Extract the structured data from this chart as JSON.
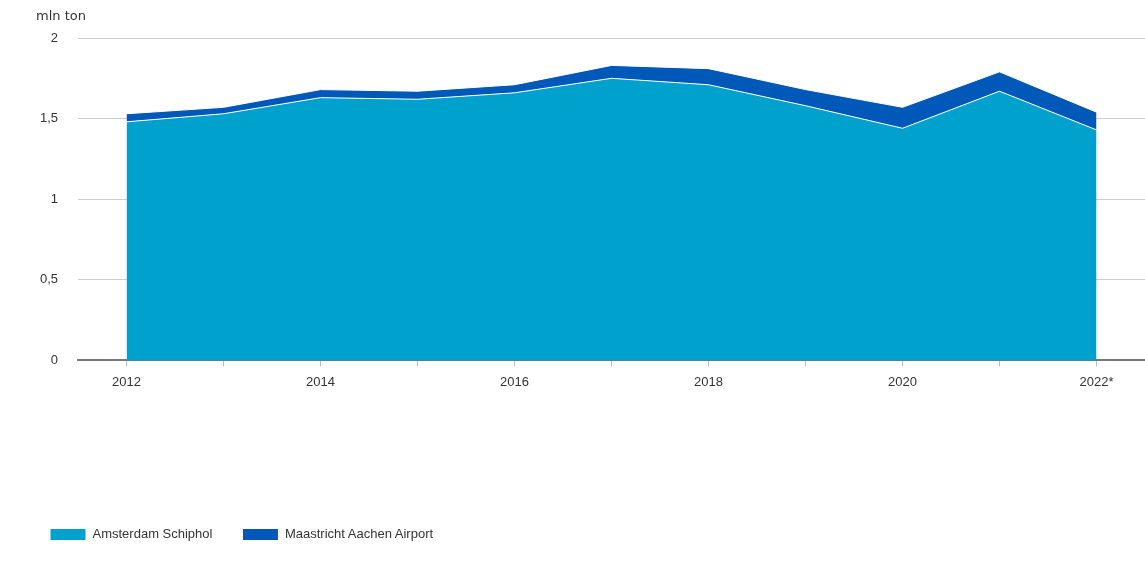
{
  "chart_data": {
    "type": "area",
    "stacked": true,
    "ylabel": "mln ton",
    "categories": [
      "2012",
      null,
      "2014",
      null,
      "2016",
      null,
      "2018",
      null,
      "2020",
      null,
      "2022*"
    ],
    "series": [
      {
        "name": "Amsterdam Schiphol",
        "color": "#00a1cd",
        "values": [
          1.48,
          1.53,
          1.63,
          1.62,
          1.66,
          1.75,
          1.71,
          1.58,
          1.44,
          1.67,
          1.43
        ]
      },
      {
        "name": "Maastricht Aachen Airport",
        "color": "#0058b8",
        "values": [
          0.05,
          0.04,
          0.05,
          0.05,
          0.05,
          0.08,
          0.1,
          0.1,
          0.13,
          0.12,
          0.11
        ]
      }
    ],
    "ylim": [
      0,
      2
    ],
    "yticks": [
      0,
      {
        "value": 0.5,
        "label": "0,5"
      },
      1,
      {
        "value": 1.5,
        "label": "1,5"
      },
      2
    ],
    "grid": "y",
    "legend": "bottom left"
  }
}
